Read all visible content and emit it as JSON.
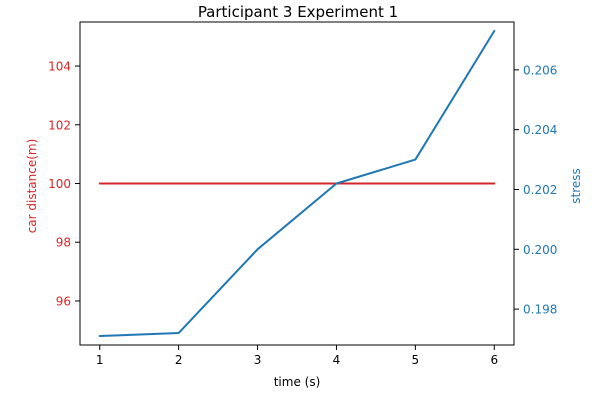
{
  "chart_data": {
    "type": "line",
    "title": "Participant 3 Experiment 1",
    "xlabel": "time (s)",
    "x": [
      1,
      2,
      3,
      4,
      5,
      6
    ],
    "xticks": [
      1,
      2,
      3,
      4,
      5,
      6
    ],
    "xlim": [
      0.75,
      6.25
    ],
    "grid": false,
    "legend": "none",
    "y_left": {
      "label": "car distance(m)",
      "color": "#d62728",
      "lim": [
        94.5,
        105.5
      ],
      "ticks": [
        96,
        98,
        100,
        102,
        104
      ]
    },
    "y_right": {
      "label": "stress",
      "color": "#1f77b4",
      "lim": [
        0.1968,
        0.2076
      ],
      "ticks": [
        0.198,
        0.2,
        0.202,
        0.204,
        0.206
      ],
      "tick_labels": [
        "0.198",
        "0.200",
        "0.202",
        "0.204",
        "0.206"
      ]
    },
    "series": [
      {
        "axis": "left",
        "color": "#d62728",
        "values": [
          100,
          100,
          100,
          100,
          100,
          100
        ]
      },
      {
        "axis": "right",
        "color": "#1f77b4",
        "values": [
          0.1971,
          0.1972,
          0.2,
          0.2022,
          0.203,
          0.2073
        ]
      }
    ]
  }
}
